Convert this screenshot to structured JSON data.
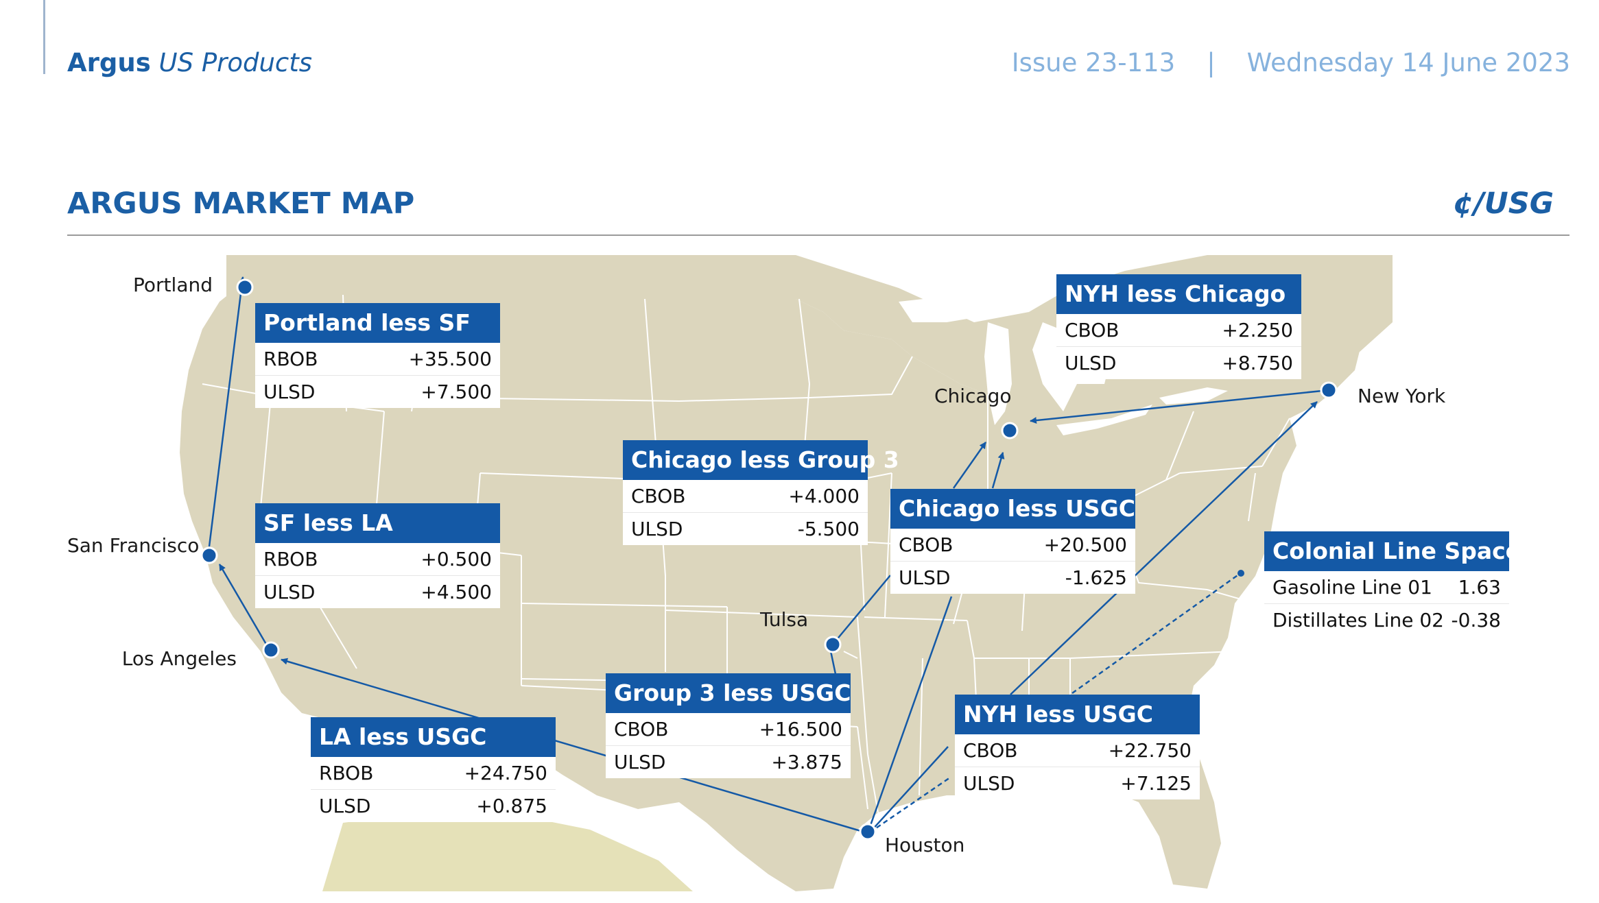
{
  "header": {
    "brand": "Argus",
    "product": "US Products",
    "issue": "Issue 23-113",
    "separator": "|",
    "date": "Wednesday 14 June 2023"
  },
  "section": {
    "title": "ARGUS MARKET MAP",
    "unit": "¢/USG"
  },
  "colors": {
    "accent": "#1459a6",
    "land": "#dcd6bd",
    "mexico": "#e5e1b8",
    "state_lines": "#ffffff",
    "route_lines": "#1459a6"
  },
  "cities": {
    "portland": "Portland",
    "san_francisco": "San Francisco",
    "los_angeles": "Los Angeles",
    "tulsa": "Tulsa",
    "chicago": "Chicago",
    "new_york": "New York",
    "houston": "Houston"
  },
  "spreads": {
    "portland_sf": {
      "title": "Portland less SF",
      "rows": [
        {
          "label": "RBOB",
          "value": "+35.500"
        },
        {
          "label": "ULSD",
          "value": "+7.500"
        }
      ]
    },
    "sf_la": {
      "title": "SF less LA",
      "rows": [
        {
          "label": "RBOB",
          "value": "+0.500"
        },
        {
          "label": "ULSD",
          "value": "+4.500"
        }
      ]
    },
    "la_usgc": {
      "title": "LA less USGC",
      "rows": [
        {
          "label": "RBOB",
          "value": "+24.750"
        },
        {
          "label": "ULSD",
          "value": "+0.875"
        }
      ]
    },
    "chicago_group3": {
      "title": "Chicago less Group 3",
      "rows": [
        {
          "label": "CBOB",
          "value": "+4.000"
        },
        {
          "label": "ULSD",
          "value": "-5.500"
        }
      ]
    },
    "group3_usgc": {
      "title": "Group 3 less USGC",
      "rows": [
        {
          "label": "CBOB",
          "value": "+16.500"
        },
        {
          "label": "ULSD",
          "value": "+3.875"
        }
      ]
    },
    "chicago_usgc": {
      "title": "Chicago less USGC",
      "rows": [
        {
          "label": "CBOB",
          "value": "+20.500"
        },
        {
          "label": "ULSD",
          "value": "-1.625"
        }
      ]
    },
    "nyh_chicago": {
      "title": "NYH less Chicago",
      "rows": [
        {
          "label": "CBOB",
          "value": "+2.250"
        },
        {
          "label": "ULSD",
          "value": "+8.750"
        }
      ]
    },
    "nyh_usgc": {
      "title": "NYH less USGC",
      "rows": [
        {
          "label": "CBOB",
          "value": "+22.750"
        },
        {
          "label": "ULSD",
          "value": "+7.125"
        }
      ]
    },
    "colonial": {
      "title": "Colonial Line Space",
      "rows": [
        {
          "label": "Gasoline Line 01",
          "value": "1.63"
        },
        {
          "label": "Distillates Line 02",
          "value": "-0.38"
        }
      ]
    }
  }
}
